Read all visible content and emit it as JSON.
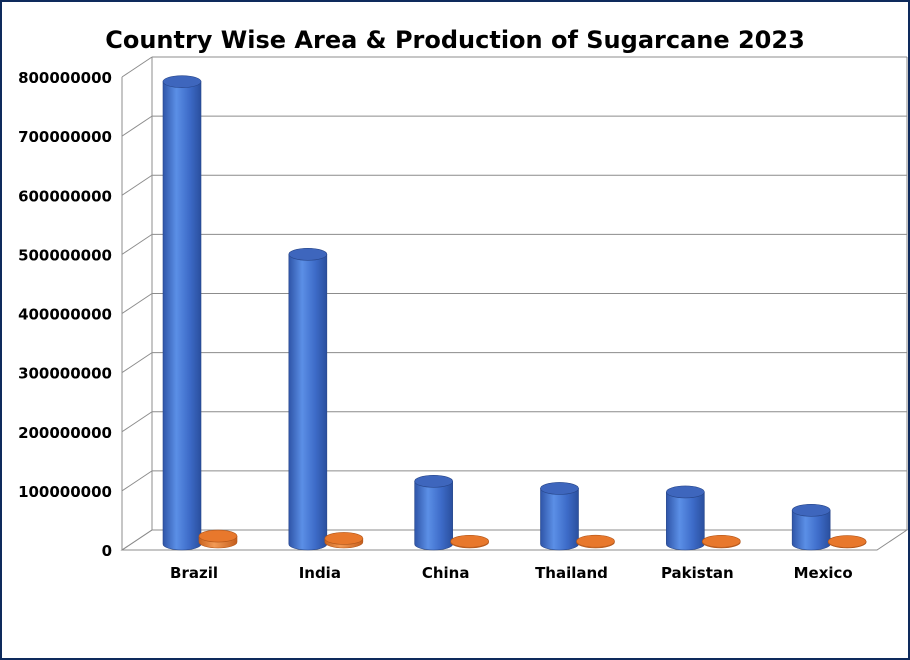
{
  "chart_data": {
    "type": "bar",
    "title": "Country Wise Area & Production of Sugarcane 2023",
    "xlabel": "",
    "ylabel": "",
    "categories": [
      "Brazil",
      "India",
      "China",
      "Thailand",
      "Pakistan",
      "Mexico"
    ],
    "series": [
      {
        "values": [
          782000000,
          490000000,
          106000000,
          94000000,
          88000000,
          57000000
        ],
        "color": "#4472c4"
      },
      {
        "values": [
          10000000,
          6000000,
          1200000,
          1300000,
          1200000,
          800000
        ],
        "color": "#ed7d31"
      }
    ],
    "ylim": [
      0,
      800000000
    ],
    "yticks": [
      "0",
      "100000000",
      "200000000",
      "300000000",
      "400000000",
      "500000000",
      "600000000",
      "700000000",
      "800000000"
    ],
    "grid": true,
    "legend": "none",
    "style": "3d-cylinder"
  }
}
